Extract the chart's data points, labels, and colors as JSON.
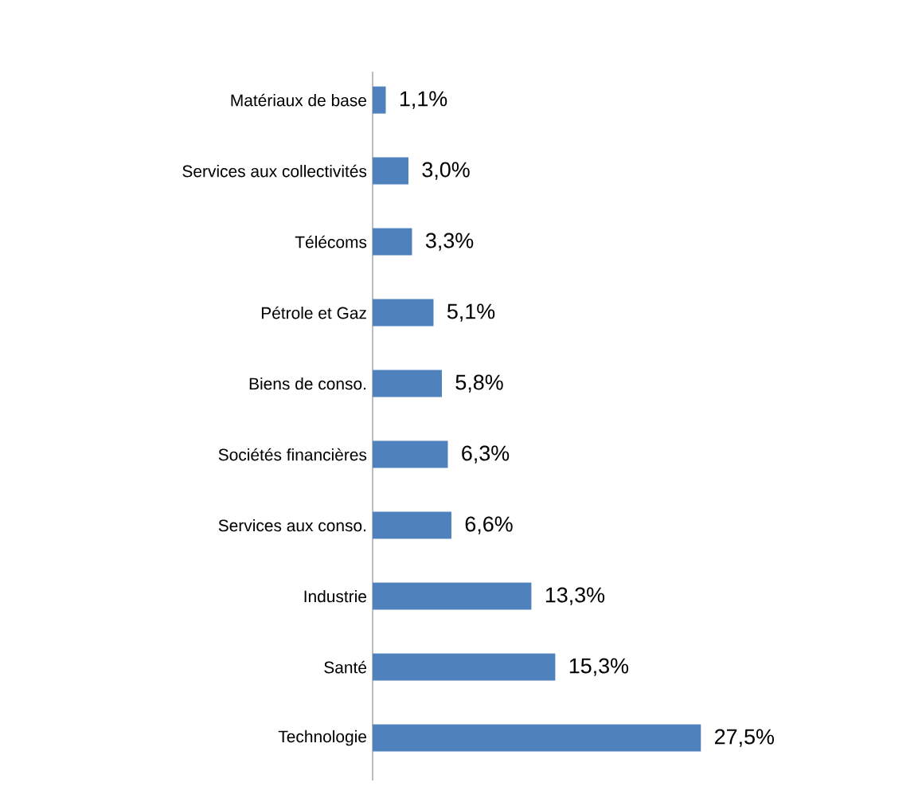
{
  "chart_data": {
    "type": "bar",
    "orientation": "horizontal",
    "categories": [
      "Matériaux de base",
      "Services aux collectivités",
      "Télécoms",
      "Pétrole et Gaz",
      "Biens de conso.",
      "Sociétés financières",
      "Services aux conso.",
      "Industrie",
      "Santé",
      "Technologie"
    ],
    "values": [
      1.1,
      3.0,
      3.3,
      5.1,
      5.8,
      6.3,
      6.6,
      13.3,
      15.3,
      27.5
    ],
    "value_labels": [
      "1,1%",
      "3,0%",
      "3,3%",
      "5,1%",
      "5,8%",
      "6,3%",
      "6,6%",
      "13,3%",
      "15,3%",
      "27,5%"
    ],
    "color": "#4f81bd"
  }
}
